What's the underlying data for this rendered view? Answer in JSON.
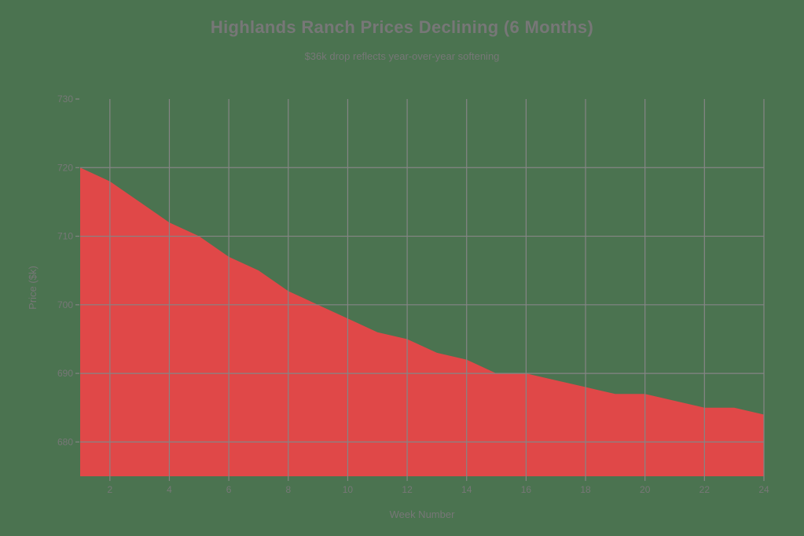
{
  "chart_data": {
    "type": "area",
    "title": "Highlands Ranch Prices Declining (6 Months)",
    "subtitle": "$36k drop reflects year-over-year softening",
    "xlabel": "Week Number",
    "ylabel": "Price ($k)",
    "x": [
      1,
      2,
      3,
      4,
      5,
      6,
      7,
      8,
      9,
      10,
      11,
      12,
      13,
      14,
      15,
      16,
      17,
      18,
      19,
      20,
      21,
      22,
      23,
      24
    ],
    "series": [
      {
        "name": "Price ($k)",
        "values": [
          720,
          718,
          715,
          712,
          710,
          707,
          705,
          702,
          700,
          698,
          696,
          695,
          693,
          692,
          690,
          690,
          689,
          688,
          687,
          687,
          686,
          685,
          685,
          684
        ]
      }
    ],
    "xlim": [
      1,
      24
    ],
    "ylim": [
      675,
      730
    ],
    "xticks": [
      2,
      4,
      6,
      8,
      10,
      12,
      14,
      16,
      18,
      20,
      22,
      24
    ],
    "yticks": [
      680,
      690,
      700,
      710,
      720,
      730
    ],
    "grid": true,
    "legend": "none",
    "colors": {
      "background": "#4b7350",
      "fill": "#e04848",
      "grid": "#858585",
      "text": "#777777"
    }
  }
}
